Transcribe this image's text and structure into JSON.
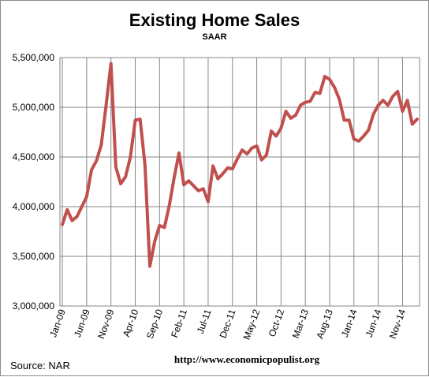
{
  "colors": {
    "series": "#c0504d",
    "grid": "#868686",
    "axis": "#868686"
  },
  "footer": {
    "source": "Source:  NAR",
    "url": "http://www.economicpopulist.org"
  },
  "chart_data": {
    "type": "line",
    "title": "Existing Home Sales",
    "subtitle": "SAAR",
    "ylim": [
      3000000,
      5500000
    ],
    "yticks": [
      "3,000,000",
      "3,500,000",
      "4,000,000",
      "4,500,000",
      "5,000,000",
      "5,500,000"
    ],
    "xtick_labels": [
      "Jan-09",
      "Jun-09",
      "Nov-09",
      "Apr-10",
      "Sep-10",
      "Feb-11",
      "Jul-11",
      "Dec-11",
      "May-12",
      "Oct-12",
      "Mar-13",
      "Aug-13",
      "Jan-14",
      "Jun-14",
      "Nov-14"
    ],
    "x": [
      "Jan-09",
      "Feb-09",
      "Mar-09",
      "Apr-09",
      "May-09",
      "Jun-09",
      "Jul-09",
      "Aug-09",
      "Sep-09",
      "Oct-09",
      "Nov-09",
      "Dec-09",
      "Jan-10",
      "Feb-10",
      "Mar-10",
      "Apr-10",
      "May-10",
      "Jun-10",
      "Jul-10",
      "Aug-10",
      "Sep-10",
      "Oct-10",
      "Nov-10",
      "Dec-10",
      "Jan-11",
      "Feb-11",
      "Mar-11",
      "Apr-11",
      "May-11",
      "Jun-11",
      "Jul-11",
      "Aug-11",
      "Sep-11",
      "Oct-11",
      "Nov-11",
      "Dec-11",
      "Jan-12",
      "Feb-12",
      "Mar-12",
      "Apr-12",
      "May-12",
      "Jun-12",
      "Jul-12",
      "Aug-12",
      "Sep-12",
      "Oct-12",
      "Nov-12",
      "Dec-12",
      "Jan-13",
      "Feb-13",
      "Mar-13",
      "Apr-13",
      "May-13",
      "Jun-13",
      "Jul-13",
      "Aug-13",
      "Sep-13",
      "Oct-13",
      "Nov-13",
      "Dec-13",
      "Jan-14",
      "Feb-14",
      "Mar-14",
      "Apr-14",
      "May-14",
      "Jun-14",
      "Jul-14",
      "Aug-14",
      "Sep-14",
      "Oct-14",
      "Nov-14",
      "Dec-14",
      "Jan-15",
      "Feb-15"
    ],
    "series": [
      {
        "values": [
          3820000,
          3970000,
          3860000,
          3900000,
          4000000,
          4100000,
          4370000,
          4460000,
          4620000,
          5020000,
          5440000,
          4400000,
          4230000,
          4300000,
          4500000,
          4870000,
          4880000,
          4420000,
          3400000,
          3650000,
          3810000,
          3790000,
          4010000,
          4290000,
          4540000,
          4220000,
          4260000,
          4210000,
          4160000,
          4180000,
          4050000,
          4410000,
          4280000,
          4330000,
          4390000,
          4380000,
          4480000,
          4570000,
          4530000,
          4590000,
          4610000,
          4470000,
          4520000,
          4760000,
          4710000,
          4790000,
          4960000,
          4890000,
          4920000,
          5020000,
          5050000,
          5060000,
          5150000,
          5140000,
          5310000,
          5280000,
          5200000,
          5080000,
          4870000,
          4870000,
          4680000,
          4660000,
          4710000,
          4770000,
          4930000,
          5020000,
          5070000,
          5020000,
          5110000,
          5160000,
          4960000,
          5070000,
          4830000,
          4880000
        ]
      }
    ]
  }
}
